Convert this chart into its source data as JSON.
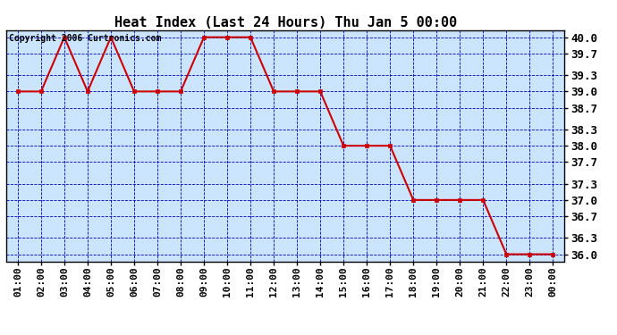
{
  "title": "Heat Index (Last 24 Hours) Thu Jan 5 00:00",
  "copyright": "Copyright 2006 Curtronics.com",
  "x_labels": [
    "01:00",
    "02:00",
    "03:00",
    "04:00",
    "05:00",
    "06:00",
    "07:00",
    "08:00",
    "09:00",
    "10:00",
    "11:00",
    "12:00",
    "13:00",
    "14:00",
    "15:00",
    "16:00",
    "17:00",
    "18:00",
    "19:00",
    "20:00",
    "21:00",
    "22:00",
    "23:00",
    "00:00"
  ],
  "x_values": [
    1,
    2,
    3,
    4,
    5,
    6,
    7,
    8,
    9,
    10,
    11,
    12,
    13,
    14,
    15,
    16,
    17,
    18,
    19,
    20,
    21,
    22,
    23,
    24
  ],
  "y_values": [
    39.0,
    39.0,
    40.0,
    39.0,
    40.0,
    39.0,
    39.0,
    39.0,
    40.0,
    40.0,
    40.0,
    39.0,
    39.0,
    39.0,
    38.0,
    38.0,
    38.0,
    37.0,
    37.0,
    37.0,
    37.0,
    36.0,
    36.0,
    36.0
  ],
  "y_ticks": [
    36.0,
    36.3,
    36.7,
    37.0,
    37.3,
    37.7,
    38.0,
    38.3,
    38.7,
    39.0,
    39.3,
    39.7,
    40.0
  ],
  "y_min": 35.87,
  "y_max": 40.13,
  "line_color": "#cc0000",
  "marker_color": "#cc0000",
  "bg_color": "#ffffff",
  "plot_bg": "#cce5ff",
  "border_color": "#000000",
  "grid_color": "#0000bb",
  "title_fontsize": 11,
  "copyright_fontsize": 7,
  "tick_fontsize": 8,
  "ytick_fontsize": 9
}
